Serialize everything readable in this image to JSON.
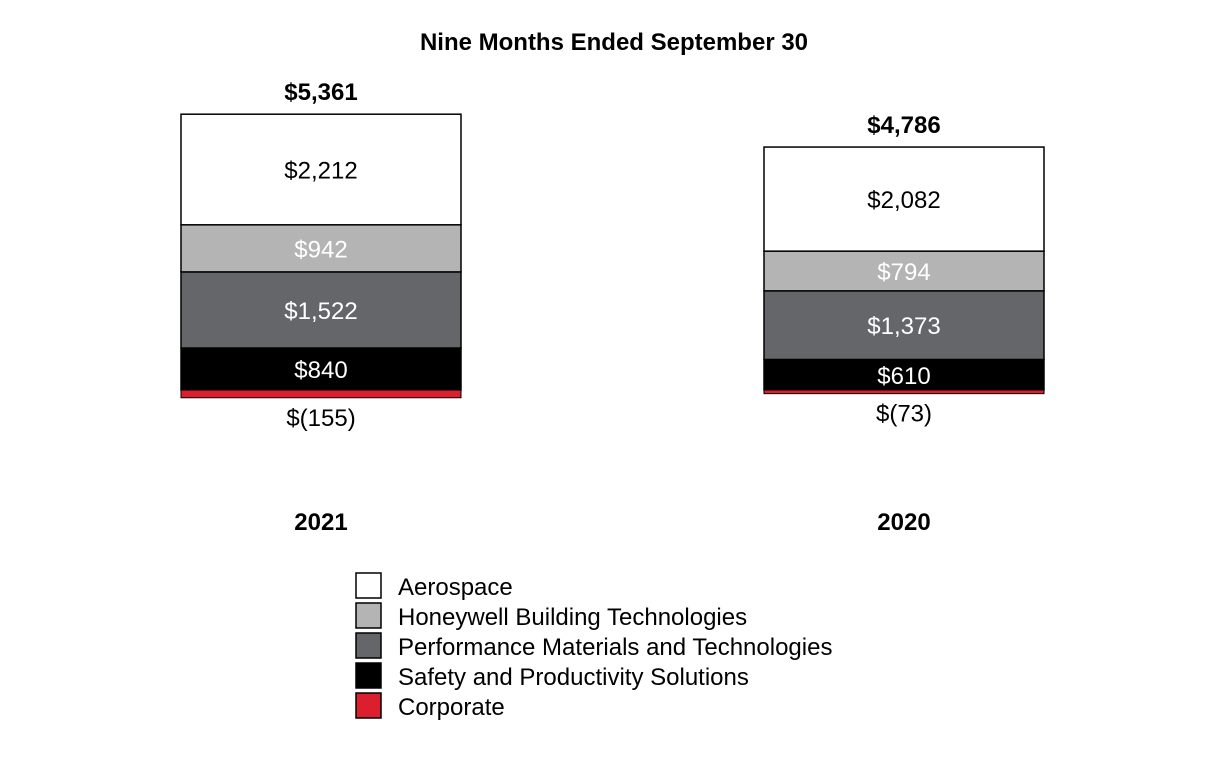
{
  "chart_data": {
    "type": "bar",
    "stacked": true,
    "title": "Nine Months Ended September 30",
    "categories": [
      "2021",
      "2020"
    ],
    "totals": [
      "$5,361",
      "$4,786"
    ],
    "series": [
      {
        "name": "Aerospace",
        "color": "#ffffff",
        "text_color": "#000000",
        "values": [
          2212,
          2082
        ],
        "labels": [
          "$2,212",
          "$2,082"
        ]
      },
      {
        "name": "Honeywell Building Technologies",
        "color": "#b3b4b3",
        "text_color": "#ffffff",
        "values": [
          942,
          794
        ],
        "labels": [
          "$942",
          "$794"
        ]
      },
      {
        "name": "Performance Materials and Technologies",
        "color": "#64666a",
        "text_color": "#ffffff",
        "values": [
          1522,
          1373
        ],
        "labels": [
          "$1,522",
          "$1,373"
        ]
      },
      {
        "name": "Safety and Productivity Solutions",
        "color": "#000000",
        "text_color": "#ffffff",
        "values": [
          840,
          610
        ],
        "labels": [
          "$840",
          "$610"
        ]
      },
      {
        "name": "Corporate",
        "color": "#dc1f2e",
        "text_color": "#000000",
        "values": [
          -155,
          -73
        ],
        "labels": [
          "$(155)",
          "$(73)"
        ]
      }
    ],
    "legend_position": "bottom",
    "xlabel": "",
    "ylabel": "",
    "grid": false
  }
}
